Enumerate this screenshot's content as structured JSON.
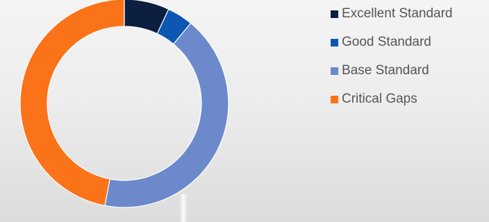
{
  "chart_data": {
    "type": "pie",
    "subtype": "donut",
    "categories": [
      "Excellent Standard",
      "Good Standard",
      "Base Standard",
      "Critical Gaps"
    ],
    "values": [
      7,
      4,
      42,
      47
    ],
    "colors": [
      "#0c1f3f",
      "#0d57b3",
      "#6c8acb",
      "#fa7319"
    ],
    "legend": "right",
    "title": ""
  }
}
